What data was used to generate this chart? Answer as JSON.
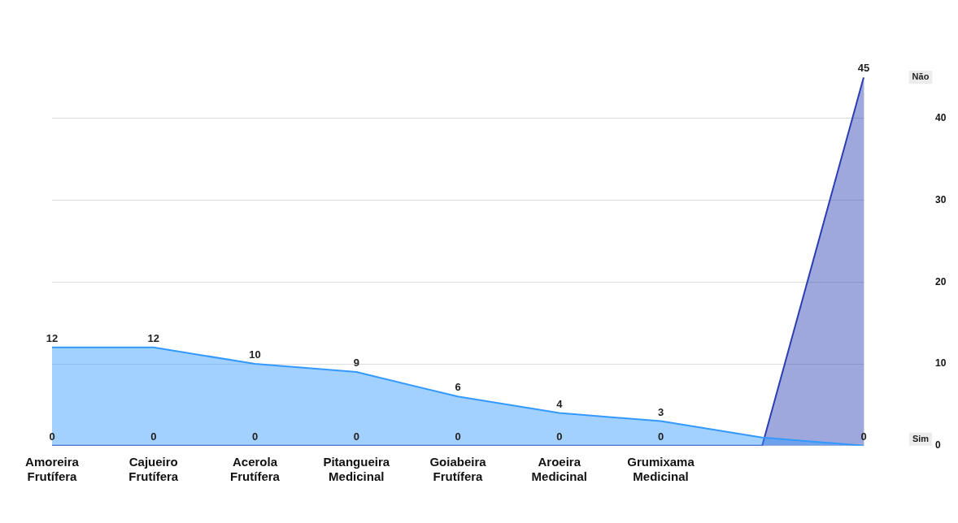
{
  "chart_data": {
    "type": "area",
    "categories": [
      "Amoreira Frutífera",
      "Cajueiro Frutífera",
      "Acerola Frutífera",
      "Pitangueira Medicinal",
      "Goiabeira Frutífera",
      "Aroeira Medicinal",
      "Grumixama Medicinal",
      null,
      null
    ],
    "series": [
      {
        "name": "Sim",
        "color": "#3399ff",
        "values": [
          12,
          12,
          10,
          9,
          6,
          4,
          3,
          1,
          0
        ],
        "value_labels": [
          "12",
          "12",
          "10",
          "9",
          "6",
          "4",
          "3",
          null,
          "0"
        ]
      },
      {
        "name": "Não",
        "color": "#2b3eb3",
        "values": [
          0,
          0,
          0,
          0,
          0,
          0,
          0,
          0,
          45
        ],
        "value_labels": [
          "0",
          "0",
          "0",
          "0",
          "0",
          "0",
          "0",
          null,
          "45"
        ]
      }
    ],
    "ylim": [
      0,
      45
    ],
    "yticks": [
      0,
      10,
      20,
      30,
      40
    ],
    "grid": "y",
    "legend": false
  }
}
